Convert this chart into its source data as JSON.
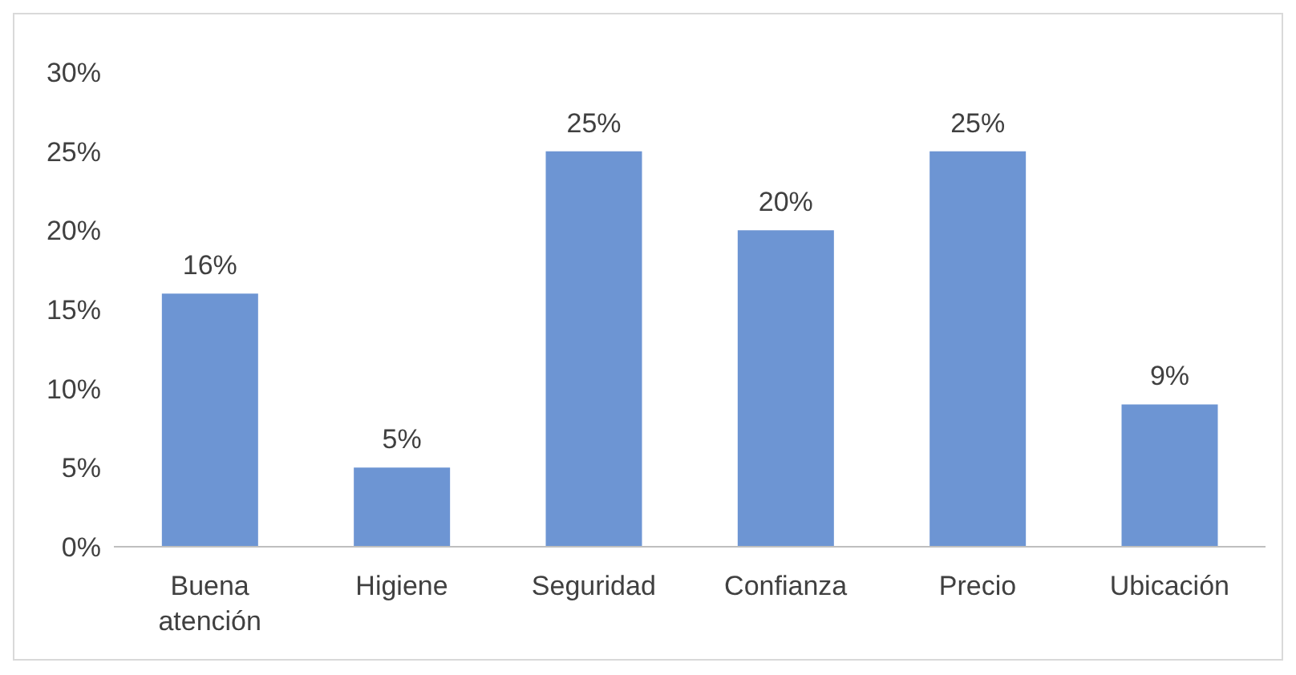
{
  "chart_data": {
    "type": "bar",
    "categories": [
      "Buena atención",
      "Higiene",
      "Seguridad",
      "Confianza",
      "Precio",
      "Ubicación"
    ],
    "values": [
      16,
      5,
      25,
      20,
      25,
      9
    ],
    "value_labels": [
      "16%",
      "5%",
      "25%",
      "20%",
      "25%",
      "9%"
    ],
    "color": "#6d95d3",
    "ylim": [
      0,
      30
    ],
    "yticks": [
      {
        "value": 0,
        "label": "0%"
      },
      {
        "value": 5,
        "label": "5%"
      },
      {
        "value": 10,
        "label": "10%"
      },
      {
        "value": 15,
        "label": "15%"
      },
      {
        "value": 20,
        "label": "20%"
      },
      {
        "value": 25,
        "label": "25%"
      },
      {
        "value": 30,
        "label": "30%"
      }
    ],
    "grid": false,
    "legend": false
  }
}
